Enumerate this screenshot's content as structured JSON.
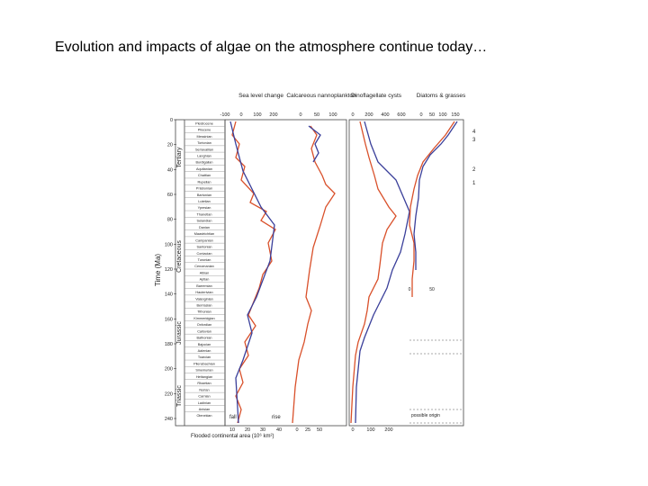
{
  "slide": {
    "title": "Evolution and impacts of algae on the atmosphere continue today…"
  },
  "figure": {
    "panels": [
      "Sea level change",
      "Calcareous nannoplankton",
      "Dinoflagellate cysts",
      "Diatoms & grasses"
    ],
    "top_ticks": [
      [
        "-100",
        "0",
        "100",
        "200"
      ],
      [
        "0",
        "50",
        "100"
      ],
      [
        "0",
        "200",
        "400",
        "600"
      ],
      [
        "0",
        "50",
        "100",
        "150"
      ]
    ],
    "time_label": "Time (Ma)",
    "time_ticks": [
      0,
      20,
      40,
      60,
      80,
      100,
      120,
      140,
      160,
      180,
      200,
      220,
      240
    ],
    "periods": [
      "Tertiary",
      "Cretaceous",
      "Jurassic",
      "Triassic"
    ],
    "stages": [
      "Pleistocene",
      "Pliocene",
      "Messinian",
      "Tortonian",
      "Serravallian",
      "Langhian",
      "Burdigalian",
      "Aquitanian",
      "Chattian",
      "Rupelian",
      "Priabonian",
      "Bartonian",
      "Lutetian",
      "Ypresian",
      "Thanetian",
      "Selandian",
      "Danian",
      "Maastrichtian",
      "Campanian",
      "Santonian",
      "Coniacian",
      "Turonian",
      "Cenomanian",
      "Albian",
      "Aptian",
      "Barremian",
      "Hauterivian",
      "Valanginian",
      "Berriasian",
      "Tithonian",
      "Kimmeridgian",
      "Oxfordian",
      "Callovian",
      "Bathonian",
      "Bajocian",
      "Aalenian",
      "Toarcian",
      "Pliensbachian",
      "Sinemurian",
      "Hettangian",
      "Rhaetian",
      "Norian",
      "Carnian",
      "Ladinian",
      "Anisian",
      "Olenekian"
    ],
    "bottom_ticks": [
      "10",
      "20",
      "30",
      "40",
      "0",
      "25",
      "50",
      "0",
      "100",
      "200"
    ],
    "bottom_label": "Flooded continental area (10⁶ km²)",
    "fall": "fall",
    "rise": "rise",
    "note": "possible origin",
    "inset_ticks": [
      "0",
      "50"
    ],
    "markers": [
      "1",
      "2",
      "3",
      "4"
    ]
  }
}
